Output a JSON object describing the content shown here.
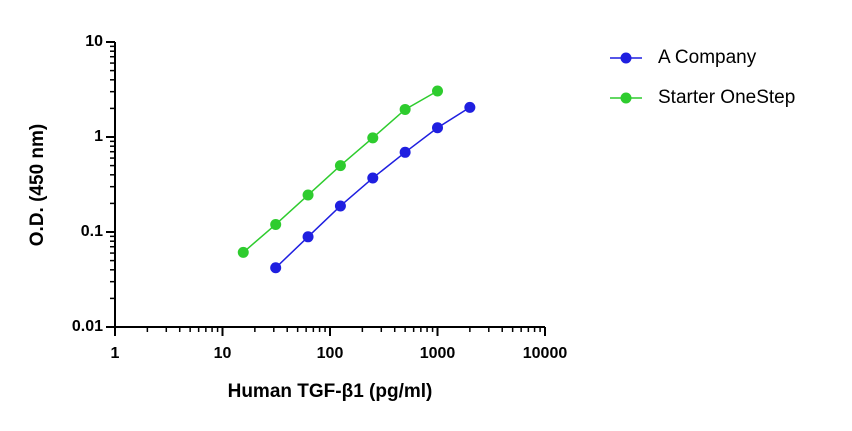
{
  "chart_data": {
    "type": "line",
    "x_label": "Human TGF-β1 (pg/ml)",
    "y_label": "O.D. (450 nm)",
    "xscale": "log",
    "yscale": "log",
    "xlim": [
      1,
      10000
    ],
    "xticks": [
      1,
      10,
      100,
      1000,
      10000
    ],
    "ylim": [
      0.01,
      10
    ],
    "yticks": [
      0.01,
      0.1,
      1,
      10
    ],
    "legend": "upper-right-outside",
    "series": [
      {
        "name": "A Company",
        "color": "#1f1fe0",
        "x": [
          31.25,
          62.5,
          125,
          250,
          500,
          1000,
          2000
        ],
        "values": [
          0.042,
          0.089,
          0.188,
          0.37,
          0.69,
          1.25,
          2.05
        ]
      },
      {
        "name": "Starter OneStep",
        "color": "#2ecc2e",
        "x": [
          15.6,
          31.25,
          62.5,
          125,
          250,
          500,
          1000
        ],
        "values": [
          0.061,
          0.12,
          0.245,
          0.5,
          0.98,
          1.95,
          3.05
        ]
      }
    ]
  }
}
